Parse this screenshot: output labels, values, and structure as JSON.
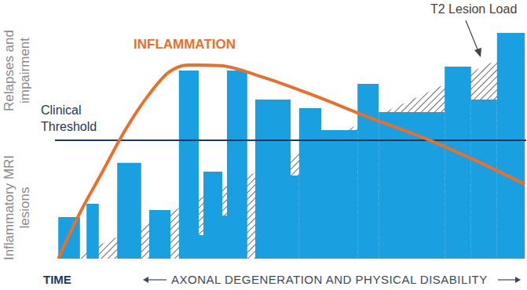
{
  "chart_data": {
    "type": "composite",
    "ylabels": [
      "Relapses and impairment",
      "Inflammatory MRI lesions"
    ],
    "xlabel": "TIME",
    "x_annotation": "AXONAL DEGENERATION AND PHYSICAL DISABILITY",
    "xlim": [
      0,
      100
    ],
    "ylim": [
      0,
      100
    ],
    "tick_labels": false,
    "threshold": {
      "label": "Clinical Threshold",
      "value": 48.7,
      "color": "#1b3a5c"
    },
    "series": [
      {
        "type": "bar",
        "color": "#1a9fe0",
        "x_start": [
          0.7,
          6.7,
          13.2,
          20.0,
          26.3,
          30.5,
          31.5,
          35.5,
          36.5,
          42.5,
          50.0,
          51.8,
          56.5,
          64.2,
          68.7,
          82.7,
          88.3,
          93.8
        ],
        "x_end": [
          5.3,
          9.3,
          18.3,
          24.5,
          30.5,
          31.5,
          35.5,
          36.5,
          40.8,
          50.0,
          51.8,
          56.5,
          64.2,
          68.7,
          82.7,
          88.3,
          93.8,
          99.7
        ],
        "values": [
          17.1,
          22.6,
          39.4,
          20.0,
          77.4,
          9.7,
          35.8,
          17.7,
          77.4,
          65.5,
          34.2,
          61.9,
          52.9,
          71.9,
          60.3,
          79.0,
          65.5,
          92.9
        ]
      },
      {
        "name": "T2 Lesion Load",
        "type": "area",
        "color": "#6b6b6b",
        "x": [
          3.3,
          99.7
        ],
        "values": [
          0,
          87.1
        ]
      },
      {
        "name": "INFLAMMATION",
        "type": "line",
        "color": "#e8702a",
        "x": [
          0.7,
          5.0,
          10.0,
          15.0,
          20.0,
          24.2,
          28.3,
          35.0,
          43.3,
          55.0,
          66.7,
          78.3,
          90.0,
          99.7
        ],
        "values": [
          0,
          17.7,
          35.5,
          53.2,
          67.7,
          76.8,
          79.7,
          79.4,
          75.2,
          67.1,
          58.1,
          49.7,
          39.7,
          30.6
        ]
      }
    ]
  }
}
